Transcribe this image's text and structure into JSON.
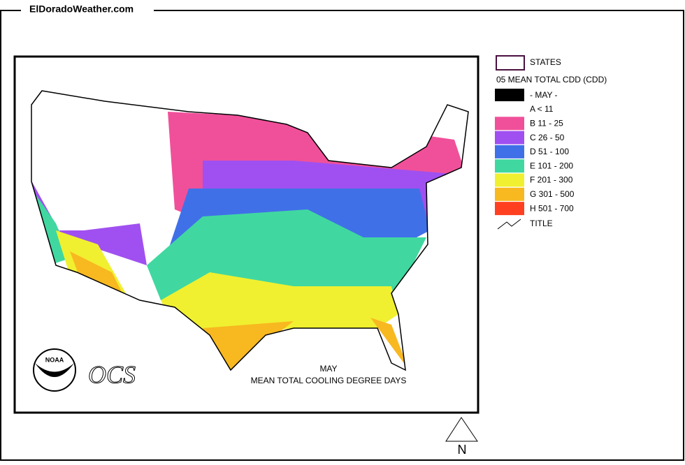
{
  "header": {
    "site": "ElDoradoWeather.com"
  },
  "legend": {
    "states": "STATES",
    "heading": "05 MEAN TOTAL CDD (CDD)",
    "period": "- MAY -",
    "items": [
      {
        "label": "A < 11",
        "color": "#ffffff"
      },
      {
        "label": "B 11 - 25",
        "color": "#f0509a"
      },
      {
        "label": "C 26 - 50",
        "color": "#a050f0"
      },
      {
        "label": "D 51 - 100",
        "color": "#4070e8"
      },
      {
        "label": "E 101 - 200",
        "color": "#40d8a0"
      },
      {
        "label": "F 201 - 300",
        "color": "#f0f030"
      },
      {
        "label": "G 301 - 500",
        "color": "#f8b820"
      },
      {
        "label": "H 501 - 700",
        "color": "#ff4020"
      }
    ],
    "title": "TITLE"
  },
  "map": {
    "caption_month": "MAY",
    "caption_title": "MEAN TOTAL COOLING DEGREE DAYS",
    "logo": "NOAA",
    "agency": "OCS",
    "north": "N"
  }
}
